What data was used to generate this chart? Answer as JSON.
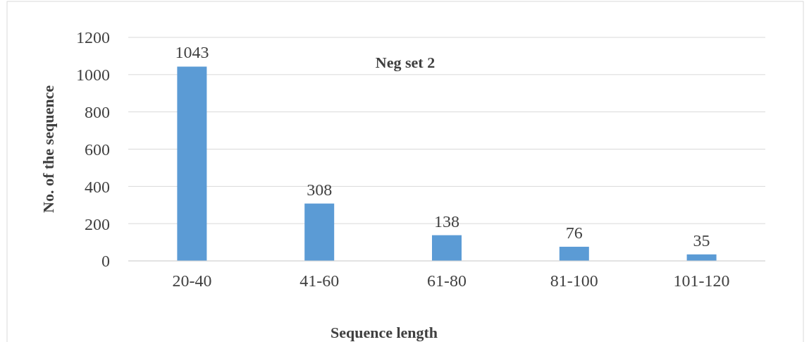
{
  "chart_data": {
    "type": "bar",
    "title": "Neg set 2",
    "xlabel": "Sequence length",
    "ylabel": "No. of the sequence",
    "categories": [
      "20-40",
      "41-60",
      "61-80",
      "81-100",
      "101-120"
    ],
    "values": [
      1043,
      308,
      138,
      76,
      35
    ],
    "color": "#5b9bd5",
    "ylim": [
      0,
      1200
    ],
    "yticks": [
      0,
      200,
      400,
      600,
      800,
      1000,
      1200
    ],
    "grid": "y",
    "data_labels": true
  }
}
